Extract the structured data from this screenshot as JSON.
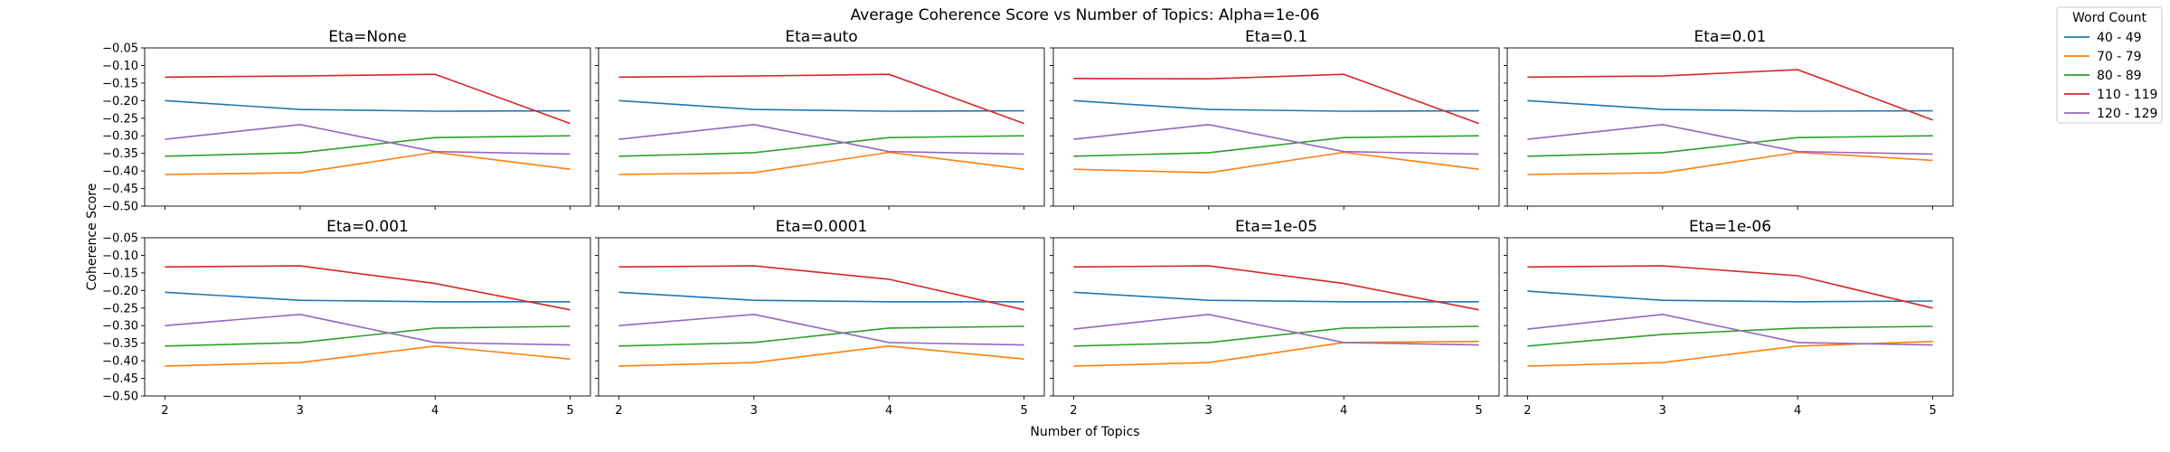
{
  "chart_data": {
    "type": "line",
    "title": "Average Coherence Score vs Number of Topics: Alpha=1e-06",
    "xlabel": "Number of Topics",
    "ylabel": "Coherence Score",
    "x": [
      2,
      3,
      4,
      5
    ],
    "x_ticks": [
      "2",
      "3",
      "4",
      "5"
    ],
    "ylim": [
      -0.5,
      -0.05
    ],
    "y_ticks": [
      "−0.05",
      "−0.10",
      "−0.15",
      "−0.20",
      "−0.25",
      "−0.30",
      "−0.35",
      "−0.40",
      "−0.45",
      "−0.50"
    ],
    "grid": false,
    "legend": {
      "title": "Word Count",
      "placement": "top-right-outside",
      "entries": [
        "40 - 49",
        "70 - 79",
        "80 - 89",
        "110 - 119",
        "120 - 129"
      ],
      "colors": [
        "#1f77b4",
        "#ff7f0e",
        "#2ca02c",
        "#d62728",
        "#9467bd"
      ]
    },
    "panels": [
      {
        "title": "Eta=None",
        "series": [
          {
            "name": "40 - 49",
            "values": [
              -0.2,
              -0.225,
              -0.23,
              -0.229
            ]
          },
          {
            "name": "70 - 79",
            "values": [
              -0.41,
              -0.405,
              -0.347,
              -0.395
            ]
          },
          {
            "name": "80 - 89",
            "values": [
              -0.358,
              -0.348,
              -0.305,
              -0.3
            ]
          },
          {
            "name": "110 - 119",
            "values": [
              -0.133,
              -0.13,
              -0.125,
              -0.265
            ]
          },
          {
            "name": "120 - 129",
            "values": [
              -0.31,
              -0.268,
              -0.345,
              -0.352
            ]
          }
        ]
      },
      {
        "title": "Eta=auto",
        "series": [
          {
            "name": "40 - 49",
            "values": [
              -0.2,
              -0.225,
              -0.23,
              -0.229
            ]
          },
          {
            "name": "70 - 79",
            "values": [
              -0.41,
              -0.405,
              -0.347,
              -0.395
            ]
          },
          {
            "name": "80 - 89",
            "values": [
              -0.358,
              -0.348,
              -0.305,
              -0.3
            ]
          },
          {
            "name": "110 - 119",
            "values": [
              -0.133,
              -0.13,
              -0.125,
              -0.265
            ]
          },
          {
            "name": "120 - 129",
            "values": [
              -0.31,
              -0.268,
              -0.345,
              -0.352
            ]
          }
        ]
      },
      {
        "title": "Eta=0.1",
        "series": [
          {
            "name": "40 - 49",
            "values": [
              -0.2,
              -0.225,
              -0.23,
              -0.229
            ]
          },
          {
            "name": "70 - 79",
            "values": [
              -0.395,
              -0.405,
              -0.347,
              -0.395
            ]
          },
          {
            "name": "80 - 89",
            "values": [
              -0.358,
              -0.348,
              -0.305,
              -0.3
            ]
          },
          {
            "name": "110 - 119",
            "values": [
              -0.137,
              -0.138,
              -0.125,
              -0.265
            ]
          },
          {
            "name": "120 - 129",
            "values": [
              -0.31,
              -0.268,
              -0.345,
              -0.352
            ]
          }
        ]
      },
      {
        "title": "Eta=0.01",
        "series": [
          {
            "name": "40 - 49",
            "values": [
              -0.2,
              -0.225,
              -0.23,
              -0.229
            ]
          },
          {
            "name": "70 - 79",
            "values": [
              -0.41,
              -0.405,
              -0.347,
              -0.37
            ]
          },
          {
            "name": "80 - 89",
            "values": [
              -0.358,
              -0.348,
              -0.305,
              -0.3
            ]
          },
          {
            "name": "110 - 119",
            "values": [
              -0.133,
              -0.13,
              -0.112,
              -0.255
            ]
          },
          {
            "name": "120 - 129",
            "values": [
              -0.31,
              -0.268,
              -0.345,
              -0.352
            ]
          }
        ]
      },
      {
        "title": "Eta=0.001",
        "series": [
          {
            "name": "40 - 49",
            "values": [
              -0.205,
              -0.228,
              -0.232,
              -0.232
            ]
          },
          {
            "name": "70 - 79",
            "values": [
              -0.415,
              -0.405,
              -0.358,
              -0.395
            ]
          },
          {
            "name": "80 - 89",
            "values": [
              -0.358,
              -0.348,
              -0.307,
              -0.302
            ]
          },
          {
            "name": "110 - 119",
            "values": [
              -0.133,
              -0.13,
              -0.18,
              -0.255
            ]
          },
          {
            "name": "120 - 129",
            "values": [
              -0.3,
              -0.268,
              -0.348,
              -0.355
            ]
          }
        ]
      },
      {
        "title": "Eta=0.0001",
        "series": [
          {
            "name": "40 - 49",
            "values": [
              -0.205,
              -0.228,
              -0.232,
              -0.232
            ]
          },
          {
            "name": "70 - 79",
            "values": [
              -0.415,
              -0.405,
              -0.358,
              -0.395
            ]
          },
          {
            "name": "80 - 89",
            "values": [
              -0.358,
              -0.348,
              -0.307,
              -0.302
            ]
          },
          {
            "name": "110 - 119",
            "values": [
              -0.133,
              -0.13,
              -0.168,
              -0.255
            ]
          },
          {
            "name": "120 - 129",
            "values": [
              -0.3,
              -0.268,
              -0.348,
              -0.355
            ]
          }
        ]
      },
      {
        "title": "Eta=1e-05",
        "series": [
          {
            "name": "40 - 49",
            "values": [
              -0.205,
              -0.228,
              -0.232,
              -0.232
            ]
          },
          {
            "name": "70 - 79",
            "values": [
              -0.415,
              -0.405,
              -0.348,
              -0.345
            ]
          },
          {
            "name": "80 - 89",
            "values": [
              -0.358,
              -0.348,
              -0.307,
              -0.302
            ]
          },
          {
            "name": "110 - 119",
            "values": [
              -0.133,
              -0.13,
              -0.18,
              -0.255
            ]
          },
          {
            "name": "120 - 129",
            "values": [
              -0.31,
              -0.268,
              -0.348,
              -0.355
            ]
          }
        ]
      },
      {
        "title": "Eta=1e-06",
        "series": [
          {
            "name": "40 - 49",
            "values": [
              -0.202,
              -0.228,
              -0.232,
              -0.23
            ]
          },
          {
            "name": "70 - 79",
            "values": [
              -0.415,
              -0.405,
              -0.358,
              -0.345
            ]
          },
          {
            "name": "80 - 89",
            "values": [
              -0.358,
              -0.325,
              -0.307,
              -0.302
            ]
          },
          {
            "name": "110 - 119",
            "values": [
              -0.133,
              -0.13,
              -0.158,
              -0.25
            ]
          },
          {
            "name": "120 - 129",
            "values": [
              -0.31,
              -0.268,
              -0.348,
              -0.355
            ]
          }
        ]
      }
    ]
  }
}
